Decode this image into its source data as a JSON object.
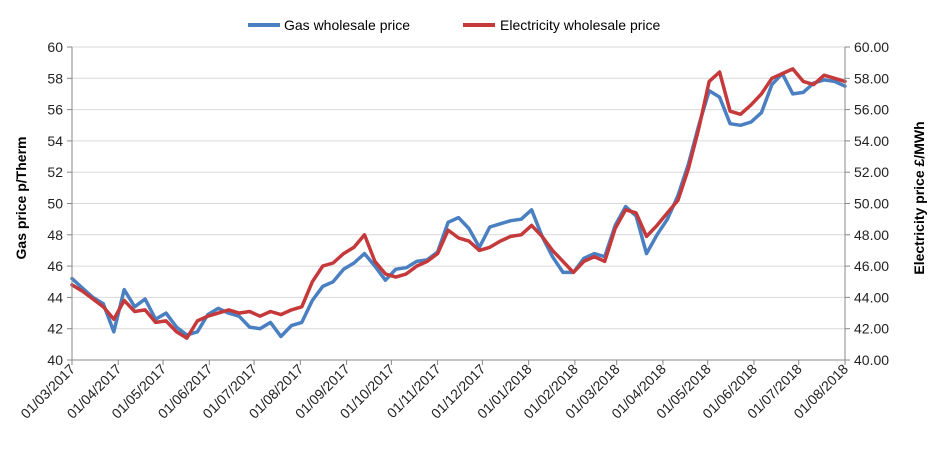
{
  "chart_data": {
    "type": "line",
    "title": "",
    "ylabel_left": "Gas price p/Therm",
    "ylabel_right": "Electricity price £/MWh",
    "ylim_left": [
      40,
      60
    ],
    "ylim_right": [
      40,
      60
    ],
    "yticks_left": [
      "40",
      "42",
      "44",
      "46",
      "48",
      "50",
      "52",
      "54",
      "56",
      "58",
      "60"
    ],
    "yticks_right": [
      "40.00",
      "42.00",
      "44.00",
      "46.00",
      "48.00",
      "50.00",
      "52.00",
      "54.00",
      "56.00",
      "58.00",
      "60.00"
    ],
    "xticks": [
      "01/03/2017",
      "01/04/2017",
      "01/05/2017",
      "01/06/2017",
      "01/07/2017",
      "01/08/2017",
      "01/09/2017",
      "01/10/2017",
      "01/11/2017",
      "01/12/2017",
      "01/01/2018",
      "01/02/2018",
      "01/03/2018",
      "01/04/2018",
      "01/05/2018",
      "01/06/2018",
      "01/07/2018",
      "01/08/2018"
    ],
    "grid": "horizontal",
    "legend_position": "top",
    "series": [
      {
        "name": "Gas wholesale price",
        "axis": "left",
        "color": "#4a7fc1",
        "x": [
          "01/03/2017",
          "08/03/2017",
          "15/03/2017",
          "22/03/2017",
          "29/03/2017",
          "05/04/2017",
          "12/04/2017",
          "19/04/2017",
          "26/04/2017",
          "03/05/2017",
          "10/05/2017",
          "17/05/2017",
          "24/05/2017",
          "31/05/2017",
          "07/06/2017",
          "14/06/2017",
          "21/06/2017",
          "28/06/2017",
          "05/07/2017",
          "12/07/2017",
          "19/07/2017",
          "26/07/2017",
          "02/08/2017",
          "09/08/2017",
          "16/08/2017",
          "23/08/2017",
          "30/08/2017",
          "06/09/2017",
          "13/09/2017",
          "20/09/2017",
          "27/09/2017",
          "04/10/2017",
          "11/10/2017",
          "18/10/2017",
          "25/10/2017",
          "01/11/2017",
          "08/11/2017",
          "15/11/2017",
          "22/11/2017",
          "29/11/2017",
          "06/12/2017",
          "13/12/2017",
          "20/12/2017",
          "27/12/2017",
          "03/01/2018",
          "10/01/2018",
          "17/01/2018",
          "24/01/2018",
          "31/01/2018",
          "07/02/2018",
          "14/02/2018",
          "21/02/2018",
          "28/02/2018",
          "07/03/2018",
          "14/03/2018",
          "21/03/2018",
          "28/03/2018",
          "04/04/2018",
          "11/04/2018",
          "18/04/2018",
          "25/04/2018",
          "02/05/2018",
          "09/05/2018",
          "16/05/2018",
          "23/05/2018",
          "30/05/2018",
          "06/06/2018",
          "13/06/2018",
          "20/06/2018",
          "27/06/2018",
          "04/07/2018",
          "11/07/2018",
          "18/07/2018",
          "25/07/2018",
          "01/08/2018"
        ],
        "values": [
          45.2,
          44.6,
          44.0,
          43.6,
          41.8,
          44.5,
          43.4,
          43.9,
          42.6,
          43.0,
          42.1,
          41.6,
          41.8,
          42.9,
          43.3,
          43.0,
          42.8,
          42.1,
          42.0,
          42.4,
          41.5,
          42.2,
          42.4,
          43.8,
          44.7,
          45.0,
          45.8,
          46.2,
          46.8,
          46.0,
          45.1,
          45.8,
          45.9,
          46.3,
          46.4,
          46.9,
          48.8,
          49.1,
          48.4,
          47.2,
          48.5,
          48.7,
          48.9,
          49.0,
          49.6,
          47.9,
          46.6,
          45.6,
          45.6,
          46.5,
          46.8,
          46.6,
          48.6,
          49.8,
          49.2,
          46.8,
          48.0,
          49.0,
          50.5,
          52.5,
          55.0,
          57.2,
          56.8,
          55.1,
          55.0,
          55.2,
          55.8,
          57.6,
          58.3,
          57.0,
          57.1,
          57.7,
          57.9,
          57.8,
          57.5
        ]
      },
      {
        "name": "Electricity wholesale price",
        "axis": "right",
        "color": "#c5393b",
        "x": [
          "01/03/2017",
          "08/03/2017",
          "15/03/2017",
          "22/03/2017",
          "29/03/2017",
          "05/04/2017",
          "12/04/2017",
          "19/04/2017",
          "26/04/2017",
          "03/05/2017",
          "10/05/2017",
          "17/05/2017",
          "24/05/2017",
          "31/05/2017",
          "07/06/2017",
          "14/06/2017",
          "21/06/2017",
          "28/06/2017",
          "05/07/2017",
          "12/07/2017",
          "19/07/2017",
          "26/07/2017",
          "02/08/2017",
          "09/08/2017",
          "16/08/2017",
          "23/08/2017",
          "30/08/2017",
          "06/09/2017",
          "13/09/2017",
          "20/09/2017",
          "27/09/2017",
          "04/10/2017",
          "11/10/2017",
          "18/10/2017",
          "25/10/2017",
          "01/11/2017",
          "08/11/2017",
          "15/11/2017",
          "22/11/2017",
          "29/11/2017",
          "06/12/2017",
          "13/12/2017",
          "20/12/2017",
          "27/12/2017",
          "03/01/2018",
          "10/01/2018",
          "17/01/2018",
          "24/01/2018",
          "31/01/2018",
          "07/02/2018",
          "14/02/2018",
          "21/02/2018",
          "28/02/2018",
          "07/03/2018",
          "14/03/2018",
          "21/03/2018",
          "28/03/2018",
          "04/04/2018",
          "11/04/2018",
          "18/04/2018",
          "25/04/2018",
          "02/05/2018",
          "09/05/2018",
          "16/05/2018",
          "23/05/2018",
          "30/05/2018",
          "06/06/2018",
          "13/06/2018",
          "20/06/2018",
          "27/06/2018",
          "04/07/2018",
          "11/07/2018",
          "18/07/2018",
          "25/07/2018",
          "01/08/2018"
        ],
        "values": [
          44.8,
          44.4,
          43.9,
          43.4,
          42.6,
          43.8,
          43.1,
          43.2,
          42.4,
          42.5,
          41.8,
          41.4,
          42.5,
          42.8,
          43.0,
          43.2,
          43.0,
          43.1,
          42.8,
          43.1,
          42.9,
          43.2,
          43.4,
          45.0,
          46.0,
          46.2,
          46.8,
          47.2,
          48.0,
          46.3,
          45.5,
          45.3,
          45.5,
          46.0,
          46.3,
          46.8,
          48.3,
          47.8,
          47.6,
          47.0,
          47.2,
          47.6,
          47.9,
          48.0,
          48.6,
          47.9,
          47.0,
          46.3,
          45.6,
          46.3,
          46.6,
          46.3,
          48.4,
          49.6,
          49.4,
          47.9,
          48.6,
          49.4,
          50.2,
          52.2,
          54.8,
          57.8,
          58.4,
          55.9,
          55.7,
          56.3,
          57.0,
          58.0,
          58.3,
          58.6,
          57.8,
          57.6,
          58.2,
          58.0,
          57.8
        ]
      }
    ]
  }
}
